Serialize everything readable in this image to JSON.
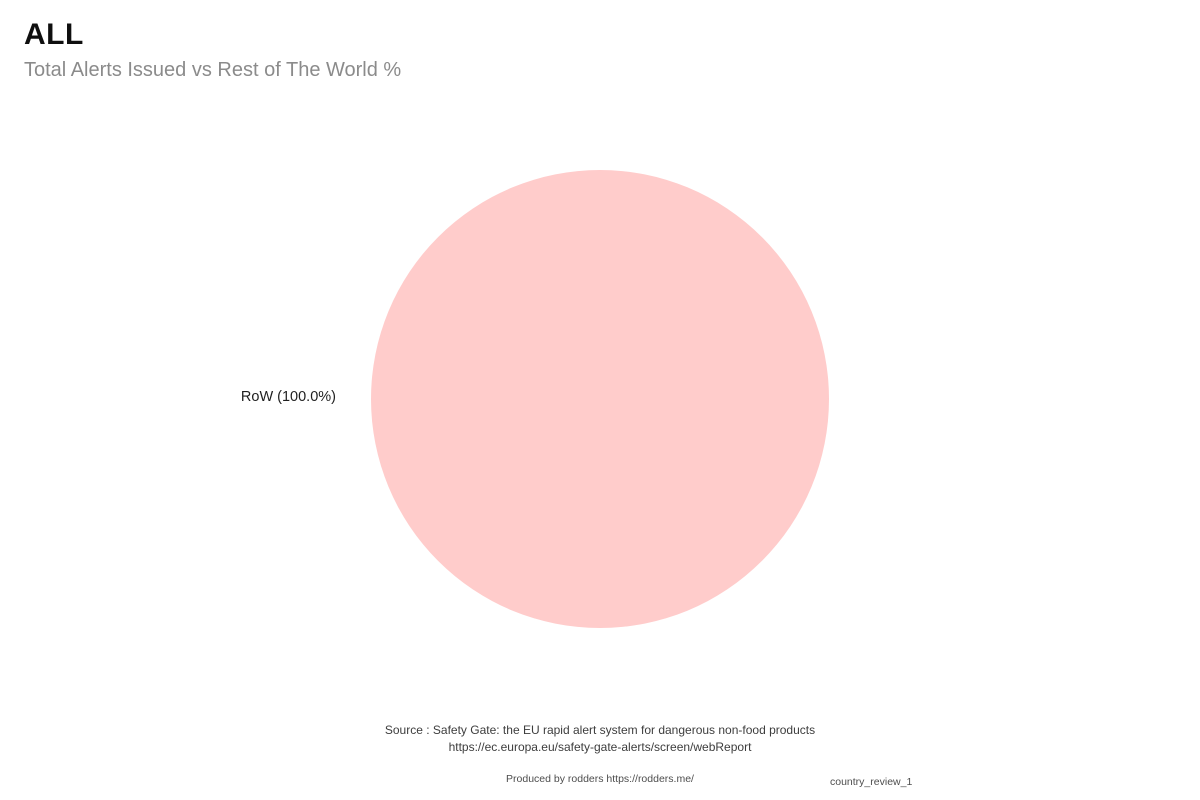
{
  "header": {
    "title": "ALL",
    "subtitle": "Total Alerts Issued vs Rest of The World %"
  },
  "chart_data": {
    "type": "pie",
    "title": "ALL",
    "subtitle": "Total Alerts Issued vs Rest of The World %",
    "categories": [
      "RoW"
    ],
    "values": [
      100.0
    ],
    "slices": [
      {
        "label": "RoW",
        "value": 100.0,
        "display": "RoW (100.0%)",
        "color": "#ffcccb"
      }
    ],
    "legend": "none",
    "label_position": "outside-left",
    "background": "#ffffff"
  },
  "footer": {
    "source_line1": "Source : Safety Gate: the EU rapid alert system for dangerous non-food products",
    "source_line2": "https://ec.europa.eu/safety-gate-alerts/screen/webReport",
    "credit": "Produced by rodders https://rodders.me/",
    "watermark": "country_review_1"
  }
}
